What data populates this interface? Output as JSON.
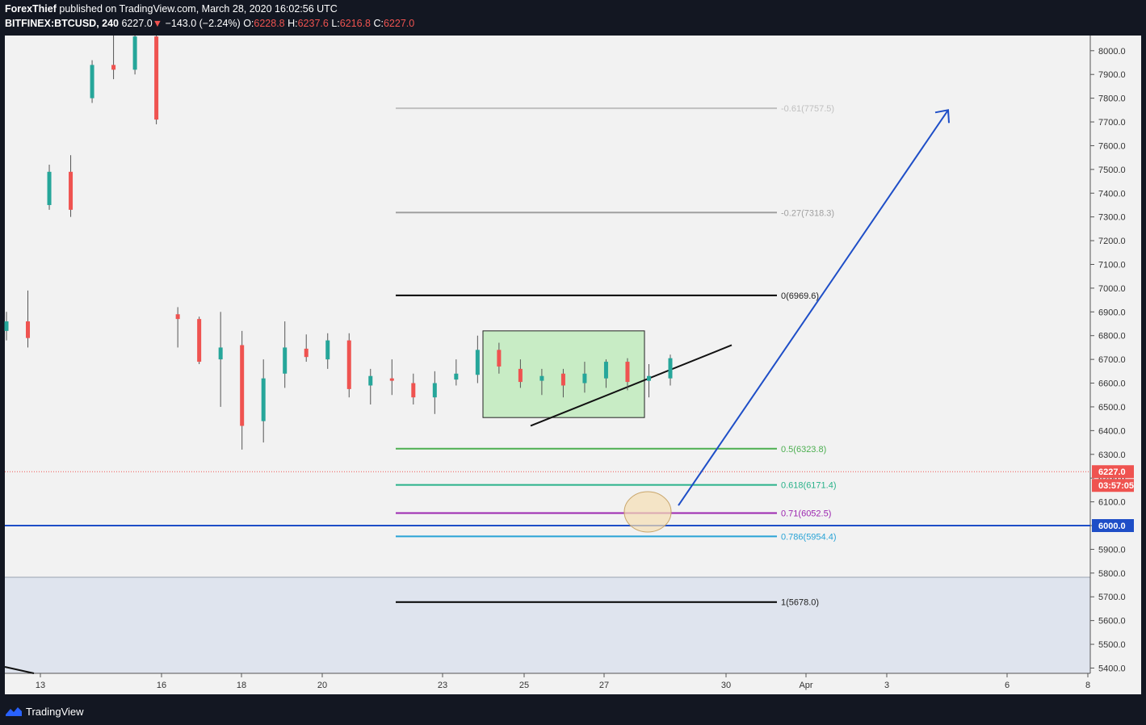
{
  "header": {
    "author": "ForexThief",
    "published_text": "published on TradingView.com, March 28, 2020 16:02:56 UTC",
    "symbol": "BITFINEX:BTCUSD, 240",
    "last": "6227.0",
    "change": "−143.0 (−2.24%)",
    "o_label": "O:",
    "o_value": "6228.8",
    "h_label": "H:",
    "h_value": "6237.6",
    "l_label": "L:",
    "l_value": "6216.8",
    "c_label": "C:",
    "c_value": "6227.0"
  },
  "footer": {
    "brand": "TradingView"
  },
  "colors": {
    "up": "#26a69a",
    "down": "#ef5350",
    "background": "#f2f2f2",
    "zone": "#dfe4ee",
    "fib_0_5": "#4caf50",
    "fib_0_618": "#2ab28a",
    "fib_0_71": "#9c27b0",
    "fib_0_786": "#29a3d6",
    "fib_ext": "#a0a0a0",
    "fib_ext_far": "#c0c0c0",
    "support": "#1e4ec7",
    "arrow": "#1e4ec7",
    "consolidation_box": "#c8ecc5",
    "circle": "#f5deb3"
  },
  "chart_data": {
    "type": "candlestick",
    "title": "",
    "ylim": [
      5380,
      8080
    ],
    "y_ticks": [
      "8000.0",
      "7900.0",
      "7800.0",
      "7700.0",
      "7600.0",
      "7500.0",
      "7400.0",
      "7300.0",
      "7200.0",
      "7100.0",
      "7000.0",
      "6900.0",
      "6800.0",
      "6700.0",
      "6600.0",
      "6500.0",
      "6400.0",
      "6300.0",
      "6200.0",
      "6100.0",
      "6000.0",
      "5900.0",
      "5800.0",
      "5700.0",
      "5600.0",
      "5500.0",
      "5400.0"
    ],
    "x_ticks": [
      "13",
      "16",
      "18",
      "20",
      "23",
      "25",
      "27",
      "30",
      "Apr",
      "3",
      "6",
      "8"
    ],
    "price_label": "6227.0",
    "countdown_label": "03:57:05",
    "support_label": "6000.0",
    "support_level": 6000,
    "zone_top": 5780,
    "fib_levels": [
      {
        "ratio": "-0.61",
        "price": 7757.5,
        "label": "-0.61(7757.5)",
        "color": "ext_far"
      },
      {
        "ratio": "-0.27",
        "price": 7318.3,
        "label": "-0.27(7318.3)",
        "color": "ext"
      },
      {
        "ratio": "0",
        "price": 6969.6,
        "label": "0(6969.6)",
        "color": "black"
      },
      {
        "ratio": "0.5",
        "price": 6323.8,
        "label": "0.5(6323.8)",
        "color": "fib_0_5"
      },
      {
        "ratio": "0.618",
        "price": 6171.4,
        "label": "0.618(6171.4)",
        "color": "fib_0_618"
      },
      {
        "ratio": "0.71",
        "price": 6052.5,
        "label": "0.71(6052.5)",
        "color": "fib_0_71"
      },
      {
        "ratio": "0.786",
        "price": 5954.4,
        "label": "0.786(5954.4)",
        "color": "fib_0_786"
      },
      {
        "ratio": "1",
        "price": 5678.0,
        "label": "1(5678.0)",
        "color": "black"
      }
    ],
    "consolidation_box": {
      "price_high": 6820,
      "price_low": 6455
    },
    "trendline": [
      {
        "price": 6420
      },
      {
        "price": 6760
      }
    ],
    "projection_arrow": [
      {
        "price": 6085
      },
      {
        "price": 7750
      }
    ],
    "candles": [
      {
        "o": 6820,
        "h": 6900,
        "l": 6780,
        "c": 6860
      },
      {
        "o": 6860,
        "h": 6990,
        "l": 6750,
        "c": 6790
      },
      {
        "o": 7350,
        "h": 7520,
        "l": 7330,
        "c": 7490
      },
      {
        "o": 7490,
        "h": 7560,
        "l": 7300,
        "c": 7330
      },
      {
        "o": 7800,
        "h": 7960,
        "l": 7780,
        "c": 7940
      },
      {
        "o": 7940,
        "h": 8100,
        "l": 7880,
        "c": 7920
      },
      {
        "o": 7920,
        "h": 8100,
        "l": 7900,
        "c": 8060
      },
      {
        "o": 8060,
        "h": 8100,
        "l": 7690,
        "c": 7710
      },
      {
        "o": 6890,
        "h": 6920,
        "l": 6750,
        "c": 6870
      },
      {
        "o": 6870,
        "h": 6880,
        "l": 6680,
        "c": 6690
      },
      {
        "o": 6700,
        "h": 6900,
        "l": 6500,
        "c": 6750
      },
      {
        "o": 6760,
        "h": 6820,
        "l": 6320,
        "c": 6420
      },
      {
        "o": 6440,
        "h": 6700,
        "l": 6350,
        "c": 6620
      },
      {
        "o": 6640,
        "h": 6860,
        "l": 6580,
        "c": 6750
      },
      {
        "o": 6745,
        "h": 6805,
        "l": 6690,
        "c": 6710
      },
      {
        "o": 6700,
        "h": 6810,
        "l": 6660,
        "c": 6780
      },
      {
        "o": 6780,
        "h": 6810,
        "l": 6540,
        "c": 6575
      },
      {
        "o": 6590,
        "h": 6660,
        "l": 6510,
        "c": 6630
      },
      {
        "o": 6620,
        "h": 6700,
        "l": 6550,
        "c": 6610
      },
      {
        "o": 6600,
        "h": 6640,
        "l": 6510,
        "c": 6540
      },
      {
        "o": 6540,
        "h": 6650,
        "l": 6470,
        "c": 6600
      },
      {
        "o": 6615,
        "h": 6700,
        "l": 6590,
        "c": 6640
      },
      {
        "o": 6635,
        "h": 6800,
        "l": 6600,
        "c": 6740
      },
      {
        "o": 6740,
        "h": 6770,
        "l": 6640,
        "c": 6670
      },
      {
        "o": 6660,
        "h": 6700,
        "l": 6580,
        "c": 6605
      },
      {
        "o": 6610,
        "h": 6660,
        "l": 6550,
        "c": 6630
      },
      {
        "o": 6640,
        "h": 6660,
        "l": 6540,
        "c": 6590
      },
      {
        "o": 6600,
        "h": 6690,
        "l": 6560,
        "c": 6640
      },
      {
        "o": 6620,
        "h": 6700,
        "l": 6580,
        "c": 6690
      },
      {
        "o": 6690,
        "h": 6705,
        "l": 6570,
        "c": 6605
      },
      {
        "o": 6610,
        "h": 6680,
        "l": 6540,
        "c": 6630
      },
      {
        "o": 6620,
        "h": 6720,
        "l": 6590,
        "c": 6705
      }
    ]
  }
}
